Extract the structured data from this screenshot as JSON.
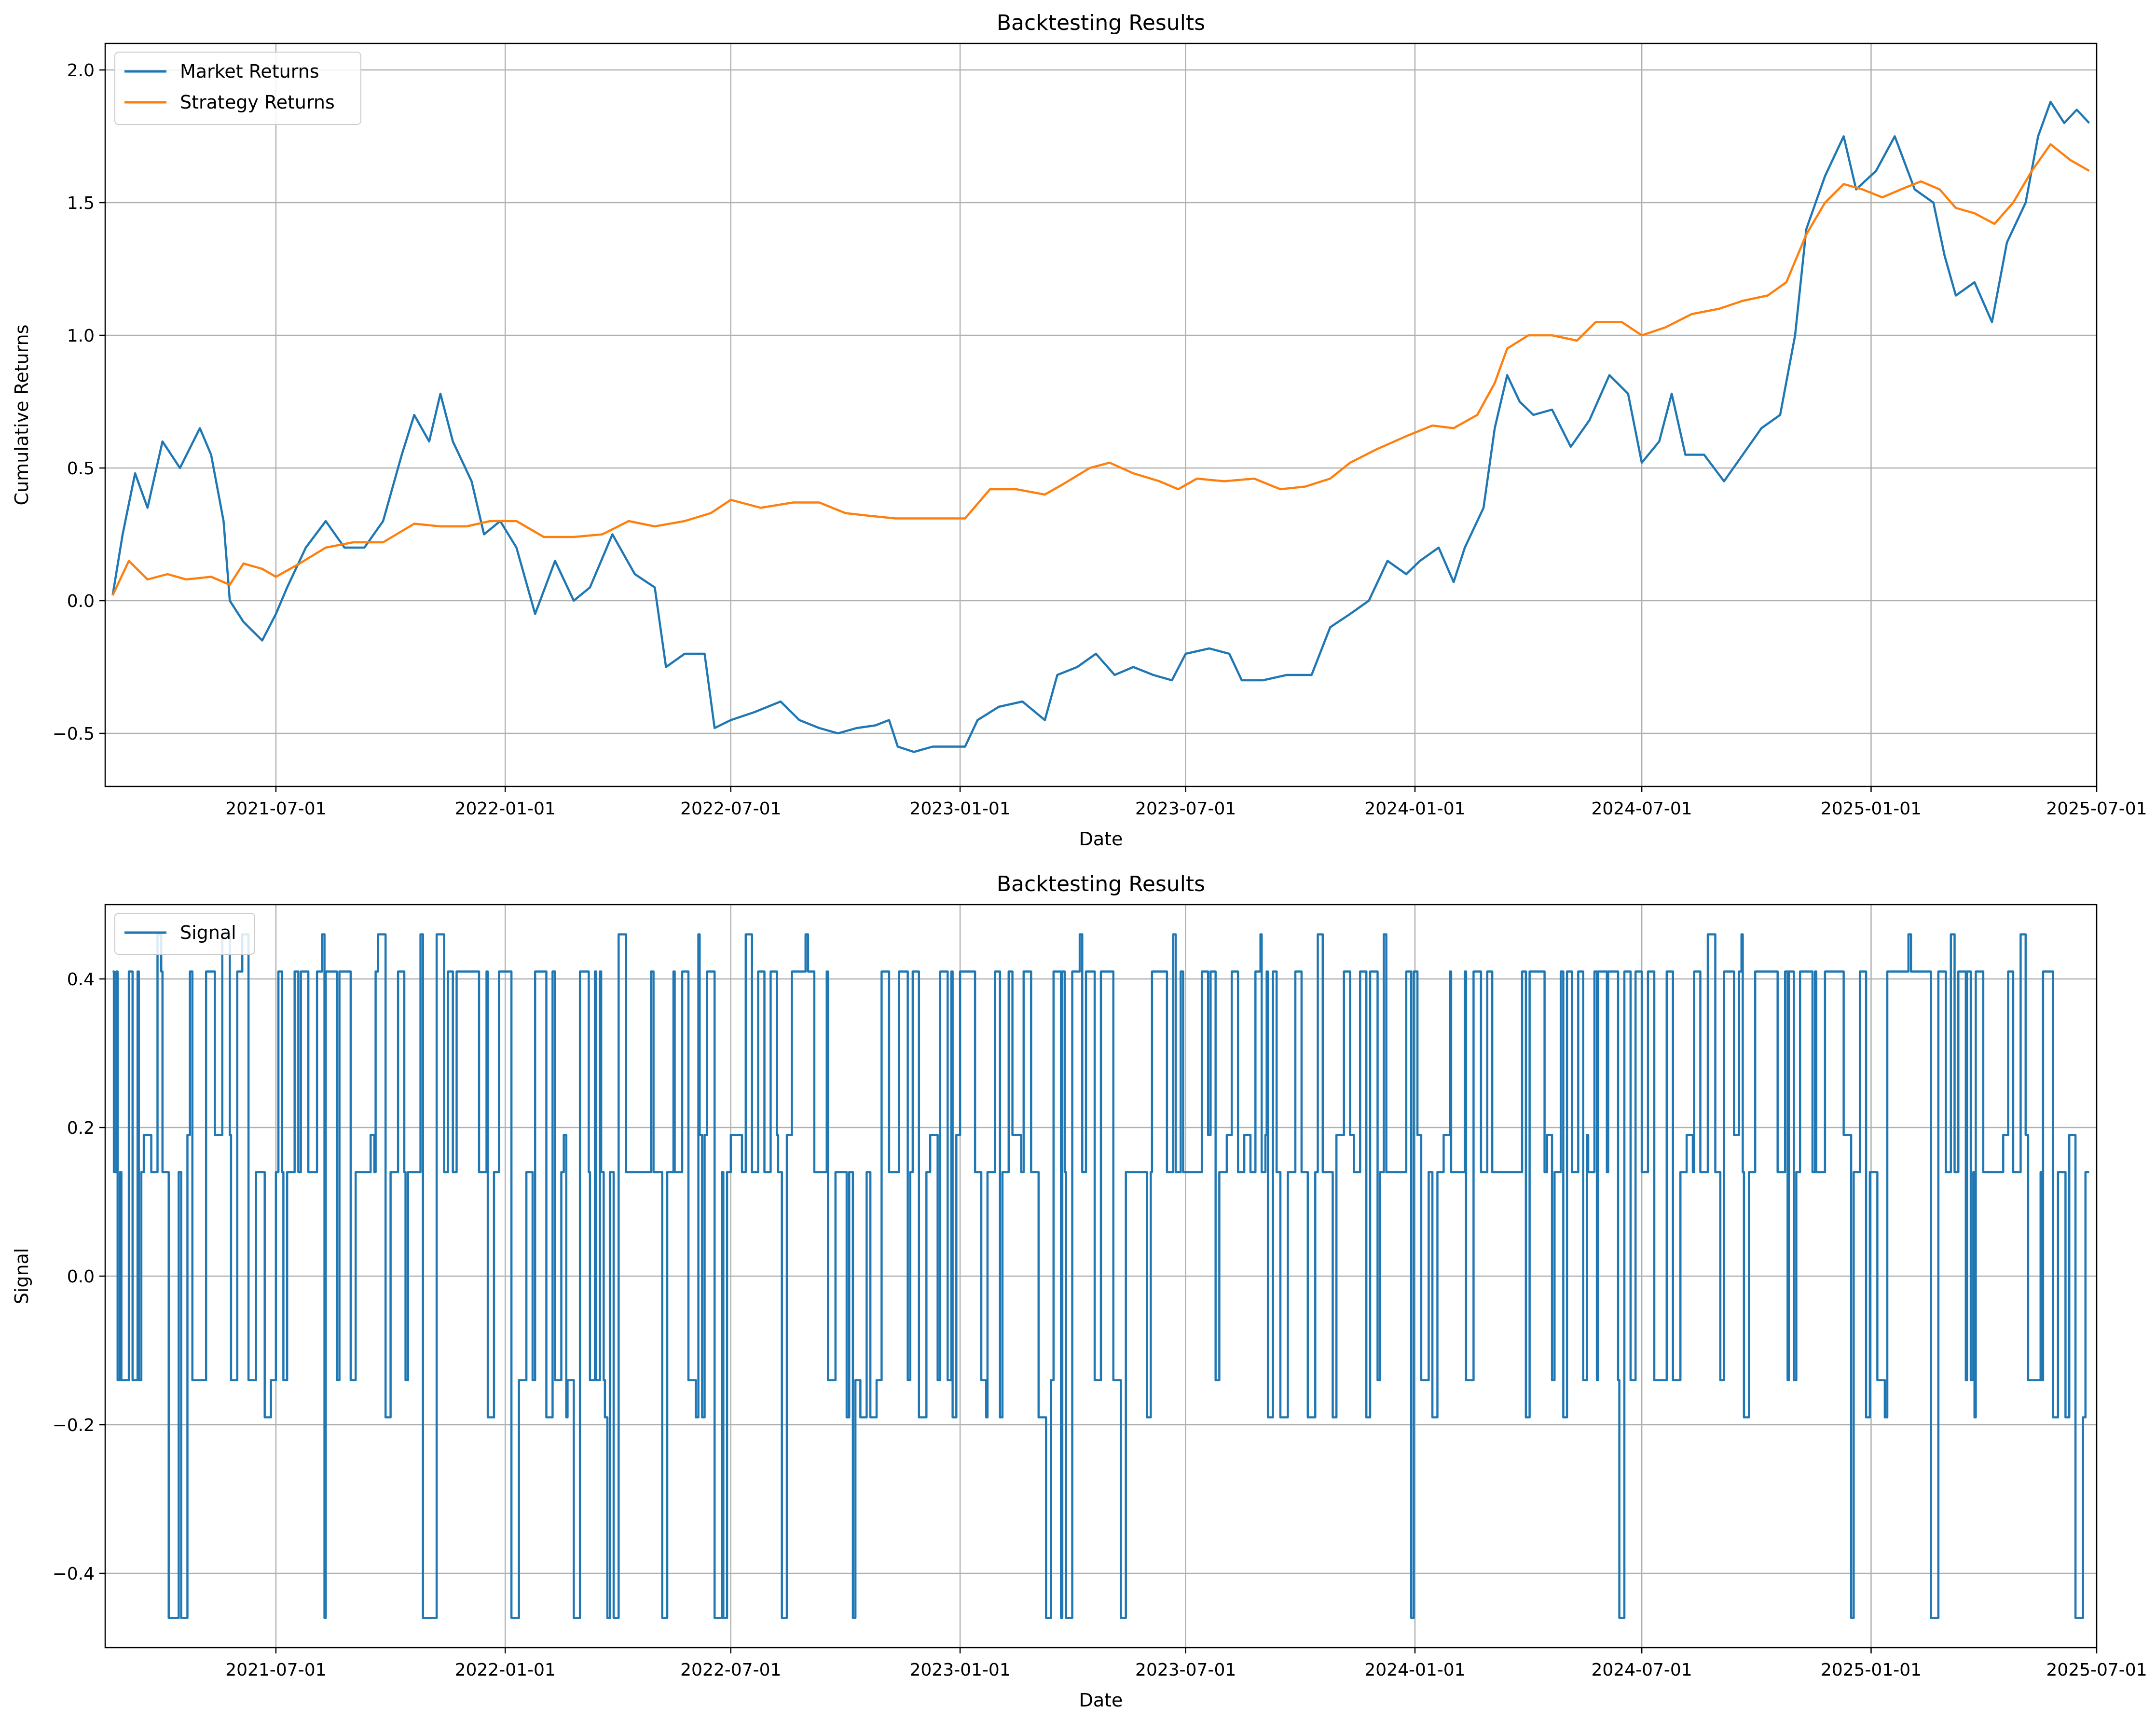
{
  "chart_data": [
    {
      "type": "line",
      "title": "Backtesting Results",
      "xlabel": "Date",
      "ylabel": "Cumulative Returns",
      "xlim": [
        "2021-02-14",
        "2025-07-01"
      ],
      "ylim": [
        -0.7,
        2.1
      ],
      "xticks": [
        "2021-07-01",
        "2022-01-01",
        "2022-07-01",
        "2023-01-01",
        "2023-07-01",
        "2024-01-01",
        "2024-07-01",
        "2025-01-01",
        "2025-07-01"
      ],
      "yticks": [
        -0.5,
        0.0,
        0.5,
        1.0,
        1.5,
        2.0
      ],
      "ytick_labels": [
        "−0.5",
        "0.0",
        "0.5",
        "1.0",
        "1.5",
        "2.0"
      ],
      "grid": true,
      "legend_position": "upper-left",
      "series": [
        {
          "name": "Market Returns",
          "color": "#1f77b4",
          "points": [
            [
              "2021-02-20",
              0.02
            ],
            [
              "2021-02-28",
              0.25
            ],
            [
              "2021-03-10",
              0.48
            ],
            [
              "2021-03-20",
              0.35
            ],
            [
              "2021-04-01",
              0.6
            ],
            [
              "2021-04-15",
              0.5
            ],
            [
              "2021-05-01",
              0.65
            ],
            [
              "2021-05-10",
              0.55
            ],
            [
              "2021-05-20",
              0.3
            ],
            [
              "2021-05-25",
              0.0
            ],
            [
              "2021-06-05",
              -0.08
            ],
            [
              "2021-06-20",
              -0.15
            ],
            [
              "2021-07-01",
              -0.05
            ],
            [
              "2021-07-10",
              0.05
            ],
            [
              "2021-07-25",
              0.2
            ],
            [
              "2021-08-10",
              0.3
            ],
            [
              "2021-08-25",
              0.2
            ],
            [
              "2021-09-10",
              0.2
            ],
            [
              "2021-09-25",
              0.3
            ],
            [
              "2021-10-10",
              0.55
            ],
            [
              "2021-10-20",
              0.7
            ],
            [
              "2021-11-01",
              0.6
            ],
            [
              "2021-11-10",
              0.78
            ],
            [
              "2021-11-20",
              0.6
            ],
            [
              "2021-12-05",
              0.45
            ],
            [
              "2021-12-15",
              0.25
            ],
            [
              "2021-12-28",
              0.3
            ],
            [
              "2022-01-10",
              0.2
            ],
            [
              "2022-01-25",
              -0.05
            ],
            [
              "2022-02-10",
              0.15
            ],
            [
              "2022-02-25",
              0.0
            ],
            [
              "2022-03-10",
              0.05
            ],
            [
              "2022-03-28",
              0.25
            ],
            [
              "2022-04-15",
              0.1
            ],
            [
              "2022-05-01",
              0.05
            ],
            [
              "2022-05-10",
              -0.25
            ],
            [
              "2022-05-25",
              -0.2
            ],
            [
              "2022-06-10",
              -0.2
            ],
            [
              "2022-06-18",
              -0.48
            ],
            [
              "2022-07-01",
              -0.45
            ],
            [
              "2022-07-20",
              -0.42
            ],
            [
              "2022-08-10",
              -0.38
            ],
            [
              "2022-08-25",
              -0.45
            ],
            [
              "2022-09-10",
              -0.48
            ],
            [
              "2022-09-25",
              -0.5
            ],
            [
              "2022-10-10",
              -0.48
            ],
            [
              "2022-10-25",
              -0.47
            ],
            [
              "2022-11-05",
              -0.45
            ],
            [
              "2022-11-12",
              -0.55
            ],
            [
              "2022-11-25",
              -0.57
            ],
            [
              "2022-12-10",
              -0.55
            ],
            [
              "2022-12-25",
              -0.55
            ],
            [
              "2023-01-05",
              -0.55
            ],
            [
              "2023-01-15",
              -0.45
            ],
            [
              "2023-02-01",
              -0.4
            ],
            [
              "2023-02-20",
              -0.38
            ],
            [
              "2023-03-10",
              -0.45
            ],
            [
              "2023-03-20",
              -0.28
            ],
            [
              "2023-04-05",
              -0.25
            ],
            [
              "2023-04-20",
              -0.2
            ],
            [
              "2023-05-05",
              -0.28
            ],
            [
              "2023-05-20",
              -0.25
            ],
            [
              "2023-06-05",
              -0.28
            ],
            [
              "2023-06-20",
              -0.3
            ],
            [
              "2023-07-01",
              -0.2
            ],
            [
              "2023-07-20",
              -0.18
            ],
            [
              "2023-08-05",
              -0.2
            ],
            [
              "2023-08-15",
              -0.3
            ],
            [
              "2023-09-01",
              -0.3
            ],
            [
              "2023-09-20",
              -0.28
            ],
            [
              "2023-10-10",
              -0.28
            ],
            [
              "2023-10-25",
              -0.1
            ],
            [
              "2023-11-10",
              -0.05
            ],
            [
              "2023-11-25",
              0.0
            ],
            [
              "2023-12-10",
              0.15
            ],
            [
              "2023-12-25",
              0.1
            ],
            [
              "2024-01-05",
              0.15
            ],
            [
              "2024-01-20",
              0.2
            ],
            [
              "2024-02-01",
              0.07
            ],
            [
              "2024-02-10",
              0.2
            ],
            [
              "2024-02-25",
              0.35
            ],
            [
              "2024-03-05",
              0.65
            ],
            [
              "2024-03-15",
              0.85
            ],
            [
              "2024-03-25",
              0.75
            ],
            [
              "2024-04-05",
              0.7
            ],
            [
              "2024-04-20",
              0.72
            ],
            [
              "2024-05-05",
              0.58
            ],
            [
              "2024-05-20",
              0.68
            ],
            [
              "2024-06-05",
              0.85
            ],
            [
              "2024-06-20",
              0.78
            ],
            [
              "2024-07-01",
              0.52
            ],
            [
              "2024-07-15",
              0.6
            ],
            [
              "2024-07-25",
              0.78
            ],
            [
              "2024-08-05",
              0.55
            ],
            [
              "2024-08-20",
              0.55
            ],
            [
              "2024-09-05",
              0.45
            ],
            [
              "2024-09-20",
              0.55
            ],
            [
              "2024-10-05",
              0.65
            ],
            [
              "2024-10-20",
              0.7
            ],
            [
              "2024-11-01",
              1.0
            ],
            [
              "2024-11-10",
              1.4
            ],
            [
              "2024-11-25",
              1.6
            ],
            [
              "2024-12-10",
              1.75
            ],
            [
              "2024-12-20",
              1.55
            ],
            [
              "2025-01-05",
              1.62
            ],
            [
              "2025-01-20",
              1.75
            ],
            [
              "2025-02-05",
              1.55
            ],
            [
              "2025-02-20",
              1.5
            ],
            [
              "2025-03-01",
              1.3
            ],
            [
              "2025-03-10",
              1.15
            ],
            [
              "2025-03-25",
              1.2
            ],
            [
              "2025-04-08",
              1.05
            ],
            [
              "2025-04-20",
              1.35
            ],
            [
              "2025-05-05",
              1.5
            ],
            [
              "2025-05-15",
              1.75
            ],
            [
              "2025-05-25",
              1.88
            ],
            [
              "2025-06-05",
              1.8
            ],
            [
              "2025-06-15",
              1.85
            ],
            [
              "2025-06-25",
              1.8
            ]
          ]
        },
        {
          "name": "Strategy Returns",
          "color": "#ff7f0e",
          "points": [
            [
              "2021-02-20",
              0.02
            ],
            [
              "2021-03-05",
              0.15
            ],
            [
              "2021-03-20",
              0.08
            ],
            [
              "2021-04-05",
              0.1
            ],
            [
              "2021-04-20",
              0.08
            ],
            [
              "2021-05-10",
              0.09
            ],
            [
              "2021-05-25",
              0.06
            ],
            [
              "2021-06-05",
              0.14
            ],
            [
              "2021-06-20",
              0.12
            ],
            [
              "2021-07-01",
              0.09
            ],
            [
              "2021-07-20",
              0.14
            ],
            [
              "2021-08-10",
              0.2
            ],
            [
              "2021-09-01",
              0.22
            ],
            [
              "2021-09-25",
              0.22
            ],
            [
              "2021-10-20",
              0.29
            ],
            [
              "2021-11-10",
              0.28
            ],
            [
              "2021-12-01",
              0.28
            ],
            [
              "2021-12-20",
              0.3
            ],
            [
              "2022-01-10",
              0.3
            ],
            [
              "2022-02-01",
              0.24
            ],
            [
              "2022-02-25",
              0.24
            ],
            [
              "2022-03-20",
              0.25
            ],
            [
              "2022-04-10",
              0.3
            ],
            [
              "2022-05-01",
              0.28
            ],
            [
              "2022-05-25",
              0.3
            ],
            [
              "2022-06-15",
              0.33
            ],
            [
              "2022-07-01",
              0.38
            ],
            [
              "2022-07-25",
              0.35
            ],
            [
              "2022-08-20",
              0.37
            ],
            [
              "2022-09-10",
              0.37
            ],
            [
              "2022-10-01",
              0.33
            ],
            [
              "2022-10-20",
              0.32
            ],
            [
              "2022-11-10",
              0.31
            ],
            [
              "2022-12-01",
              0.31
            ],
            [
              "2022-12-20",
              0.31
            ],
            [
              "2023-01-05",
              0.31
            ],
            [
              "2023-01-25",
              0.42
            ],
            [
              "2023-02-15",
              0.42
            ],
            [
              "2023-03-10",
              0.4
            ],
            [
              "2023-03-25",
              0.44
            ],
            [
              "2023-04-15",
              0.5
            ],
            [
              "2023-05-01",
              0.52
            ],
            [
              "2023-05-20",
              0.48
            ],
            [
              "2023-06-10",
              0.45
            ],
            [
              "2023-06-25",
              0.42
            ],
            [
              "2023-07-10",
              0.46
            ],
            [
              "2023-08-01",
              0.45
            ],
            [
              "2023-08-25",
              0.46
            ],
            [
              "2023-09-15",
              0.42
            ],
            [
              "2023-10-05",
              0.43
            ],
            [
              "2023-10-25",
              0.46
            ],
            [
              "2023-11-10",
              0.52
            ],
            [
              "2023-12-01",
              0.57
            ],
            [
              "2023-12-25",
              0.62
            ],
            [
              "2024-01-15",
              0.66
            ],
            [
              "2024-02-01",
              0.65
            ],
            [
              "2024-02-20",
              0.7
            ],
            [
              "2024-03-05",
              0.82
            ],
            [
              "2024-03-15",
              0.95
            ],
            [
              "2024-04-01",
              1.0
            ],
            [
              "2024-04-20",
              1.0
            ],
            [
              "2024-05-10",
              0.98
            ],
            [
              "2024-05-25",
              1.05
            ],
            [
              "2024-06-15",
              1.05
            ],
            [
              "2024-07-01",
              1.0
            ],
            [
              "2024-07-20",
              1.03
            ],
            [
              "2024-08-10",
              1.08
            ],
            [
              "2024-09-01",
              1.1
            ],
            [
              "2024-09-20",
              1.13
            ],
            [
              "2024-10-10",
              1.15
            ],
            [
              "2024-10-25",
              1.2
            ],
            [
              "2024-11-10",
              1.38
            ],
            [
              "2024-11-25",
              1.5
            ],
            [
              "2024-12-10",
              1.57
            ],
            [
              "2024-12-25",
              1.55
            ],
            [
              "2025-01-10",
              1.52
            ],
            [
              "2025-01-25",
              1.55
            ],
            [
              "2025-02-10",
              1.58
            ],
            [
              "2025-02-25",
              1.55
            ],
            [
              "2025-03-10",
              1.48
            ],
            [
              "2025-03-25",
              1.46
            ],
            [
              "2025-04-10",
              1.42
            ],
            [
              "2025-04-25",
              1.5
            ],
            [
              "2025-05-10",
              1.62
            ],
            [
              "2025-05-25",
              1.72
            ],
            [
              "2025-06-10",
              1.66
            ],
            [
              "2025-06-25",
              1.62
            ]
          ]
        }
      ]
    },
    {
      "type": "line",
      "title": "Backtesting Results",
      "xlabel": "Date",
      "ylabel": "Signal",
      "xlim": [
        "2021-02-14",
        "2025-07-01"
      ],
      "ylim": [
        -0.5,
        0.5
      ],
      "xticks": [
        "2021-07-01",
        "2022-01-01",
        "2022-07-01",
        "2023-01-01",
        "2023-07-01",
        "2024-01-01",
        "2024-07-01",
        "2025-01-01",
        "2025-07-01"
      ],
      "yticks": [
        -0.4,
        -0.2,
        0.0,
        0.2,
        0.4
      ],
      "ytick_labels": [
        "−0.4",
        "−0.2",
        "0.0",
        "0.2",
        "0.4"
      ],
      "grid": true,
      "legend_position": "upper-left",
      "series": [
        {
          "name": "Signal",
          "color": "#1f77b4",
          "levels": [
            0.41,
            0.14,
            0.19,
            -0.14,
            0.41,
            0.14,
            -0.19,
            0.41,
            0.14,
            -0.46,
            0.41,
            0.14,
            0.46,
            0.14,
            -0.14,
            0.41
          ],
          "start": "2021-02-20",
          "end": "2025-06-25",
          "min_step_days": 1,
          "max_step_days": 6
        }
      ]
    }
  ]
}
